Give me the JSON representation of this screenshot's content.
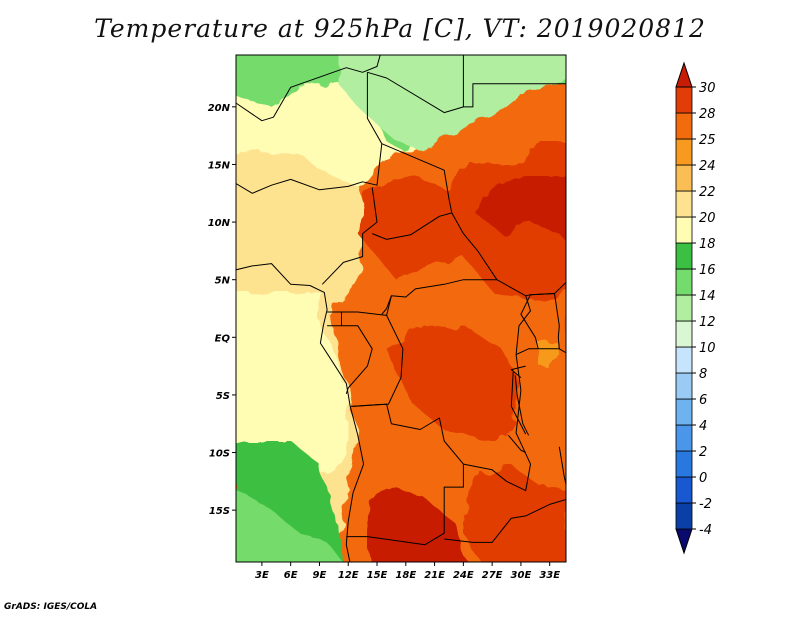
{
  "chart_data": {
    "type": "heatmap",
    "title": "Temperature at 925hPa [C], VT: 2019020812",
    "variable": "Temperature at 925hPa",
    "units": "C",
    "valid_time": "2019020812",
    "xlabel": "",
    "ylabel": "",
    "x_ticks": [
      "3E",
      "6E",
      "9E",
      "12E",
      "15E",
      "18E",
      "21E",
      "24E",
      "27E",
      "30E",
      "33E"
    ],
    "x_tick_values": [
      3,
      6,
      9,
      12,
      15,
      18,
      21,
      24,
      27,
      30,
      33
    ],
    "y_ticks": [
      "20N",
      "15N",
      "10N",
      "5N",
      "EQ",
      "5S",
      "10S",
      "15S"
    ],
    "y_tick_values": [
      20,
      15,
      10,
      5,
      0,
      -5,
      -10,
      -15
    ],
    "lon_range": [
      0.3,
      34.7
    ],
    "lat_range": [
      -19.5,
      24.5
    ],
    "colorbar": {
      "levels": [
        "-4",
        "-2",
        "0",
        "2",
        "4",
        "6",
        "8",
        "10",
        "12",
        "14",
        "16",
        "18",
        "20",
        "22",
        "24",
        "25",
        "28",
        "30"
      ],
      "colors": [
        "#0a0a6e",
        "#0b3fa8",
        "#1858d0",
        "#2878e0",
        "#4a96ea",
        "#6fb2f0",
        "#9acbf5",
        "#c6e4fb",
        "#d8f7d2",
        "#b1ee9f",
        "#74dc6c",
        "#3cc043",
        "#fffcb4",
        "#fde28f",
        "#fbbe55",
        "#f79a1f",
        "#f26b0c",
        "#e23d06",
        "#c81d04"
      ]
    },
    "grid": false,
    "legend": "right"
  },
  "footer": {
    "credit": "GrADS: IGES/COLA"
  }
}
